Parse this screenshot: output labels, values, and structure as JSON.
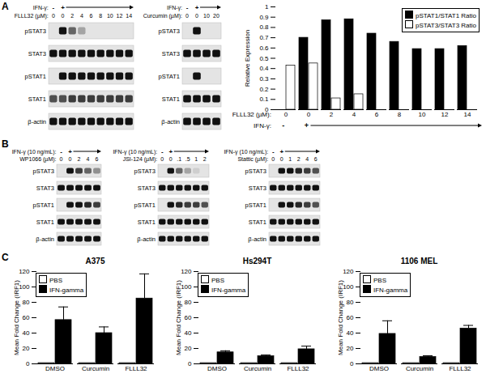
{
  "panel_labels": [
    "A",
    "B",
    "C"
  ],
  "blots": [
    {
      "ifn_label": "IFN-γ:",
      "ifn_marks": [
        "-",
        "+"
      ],
      "dose_label": "FLLL32 (µM):",
      "doses": [
        "0",
        "0",
        "2",
        "4",
        "6",
        "8",
        "10",
        "12",
        "14"
      ],
      "rows": [
        {
          "name": "pSTAT3",
          "bands": [
            0,
            1,
            0.6,
            0.3,
            0,
            0,
            0,
            0,
            0
          ]
        },
        {
          "name": "STAT3",
          "bands": [
            1,
            1,
            1,
            1,
            1,
            1,
            1,
            1,
            1
          ]
        },
        {
          "name": "pSTAT1",
          "bands": [
            0,
            1,
            1,
            1,
            1,
            1,
            1,
            1,
            1
          ]
        },
        {
          "name": "STAT1",
          "bands": [
            0.7,
            0.7,
            0.8,
            0.8,
            0.8,
            0.8,
            0.8,
            0.8,
            0.8
          ]
        },
        {
          "name": "β-actin",
          "bands": [
            1,
            1,
            1,
            1,
            1,
            1,
            1,
            1,
            1
          ]
        }
      ]
    },
    {
      "ifn_label": "IFN-γ:",
      "ifn_marks": [
        "-",
        "+"
      ],
      "dose_label": "Curcumin (µM):",
      "doses": [
        "0",
        "0",
        "10",
        "20"
      ],
      "rows": [
        {
          "name": "pSTAT3",
          "bands": [
            0,
            1,
            0,
            0
          ]
        },
        {
          "name": "STAT3",
          "bands": [
            1,
            1,
            1,
            1
          ]
        },
        {
          "name": "pSTAT1",
          "bands": [
            0,
            1,
            0,
            0
          ]
        },
        {
          "name": "STAT1",
          "bands": [
            1,
            1,
            1,
            1
          ]
        },
        {
          "name": "β-actin",
          "bands": [
            1,
            1,
            1,
            1
          ]
        }
      ]
    },
    {
      "ifn_label": "IFN-γ (10 ng/mL):",
      "ifn_marks": [
        "-",
        "+"
      ],
      "dose_label": "WP1066 (µM):",
      "doses": [
        "0",
        "0",
        "2",
        "4",
        "6"
      ],
      "rows": [
        {
          "name": "pSTAT3",
          "bands": [
            0,
            1,
            0.8,
            0.6,
            0.4
          ]
        },
        {
          "name": "STAT3",
          "bands": [
            1,
            1,
            1,
            1,
            1
          ]
        },
        {
          "name": "pSTAT1",
          "bands": [
            0,
            1,
            1,
            0.9,
            0.8
          ]
        },
        {
          "name": "STAT1",
          "bands": [
            1,
            1,
            1,
            1,
            1
          ]
        },
        {
          "name": "β-actin",
          "bands": [
            1,
            1,
            1,
            1,
            1
          ]
        }
      ]
    },
    {
      "ifn_label": "IFN-γ (10 ng/mL):",
      "ifn_marks": [
        "-",
        "+"
      ],
      "dose_label": "JSI-124 (µM):",
      "doses": [
        "0",
        "0",
        ".1",
        ".5",
        "1",
        "2"
      ],
      "rows": [
        {
          "name": "pSTAT3",
          "bands": [
            0,
            1,
            0.6,
            0.3,
            0.1,
            0
          ]
        },
        {
          "name": "STAT3",
          "bands": [
            1,
            1,
            1,
            1,
            1,
            1
          ]
        },
        {
          "name": "pSTAT1",
          "bands": [
            0,
            1,
            0.9,
            0.8,
            0.8,
            0.7
          ]
        },
        {
          "name": "STAT1",
          "bands": [
            1,
            1,
            1,
            1,
            1,
            1
          ]
        },
        {
          "name": "β-actin",
          "bands": [
            1,
            1,
            1,
            1,
            1,
            1
          ]
        }
      ]
    },
    {
      "ifn_label": "IFN-γ (10 ng/mL):",
      "ifn_marks": [
        "-",
        "+"
      ],
      "dose_label": "Stattic (µM):",
      "doses": [
        "0",
        "0",
        "1",
        "2",
        "4",
        "6"
      ],
      "rows": [
        {
          "name": "pSTAT3",
          "bands": [
            0,
            1,
            1,
            0.9,
            0.8,
            0.7
          ]
        },
        {
          "name": "STAT3",
          "bands": [
            1,
            1,
            1,
            1,
            1,
            1
          ]
        },
        {
          "name": "pSTAT1",
          "bands": [
            0,
            1,
            1,
            0.9,
            0.8,
            0.7
          ]
        },
        {
          "name": "STAT1",
          "bands": [
            1,
            1,
            1,
            1,
            1,
            1
          ]
        },
        {
          "name": "β-actin",
          "bands": [
            1,
            1,
            1,
            1,
            1,
            1
          ]
        }
      ]
    }
  ],
  "chart_data": [
    {
      "type": "bar",
      "categories": [
        "0",
        "0",
        "2",
        "4",
        "6",
        "8",
        "10",
        "12",
        "14"
      ],
      "xlabel": "FLLL32 (µM):",
      "ifn_label": "IFN-γ:",
      "ifn_marks": [
        "-",
        "+"
      ],
      "ylabel": "Relative Expression",
      "ylim": [
        0,
        1
      ],
      "yticks": [
        0,
        0.1,
        0.2,
        0.3,
        0.4,
        0.5,
        0.6,
        0.7,
        0.8,
        0.9,
        1
      ],
      "legend": "top-right",
      "series": [
        {
          "name": "pSTAT1/STAT1 Ratio",
          "color": "#000000",
          "values": [
            0,
            0.7,
            0.87,
            0.88,
            0.74,
            0.66,
            0.59,
            0.59,
            0.62
          ]
        },
        {
          "name": "pSTAT3/STAT3 Ratio",
          "color": "#ffffff",
          "values": [
            0.43,
            0.45,
            0.11,
            0.15,
            0,
            0,
            0,
            0,
            0
          ]
        }
      ]
    },
    {
      "type": "bar",
      "title": "A375",
      "categories": [
        "DMSO",
        "Curcumin",
        "FLLL32"
      ],
      "ylabel": "Mean Fold Change (IRF1)",
      "ylim": [
        0,
        120
      ],
      "yticks": [
        0,
        20,
        40,
        60,
        80,
        100,
        120
      ],
      "legend": "top-left",
      "series": [
        {
          "name": "PBS",
          "color": "#ffffff",
          "values": [
            1,
            1,
            1
          ]
        },
        {
          "name": "IFN-gamma",
          "color": "#000000",
          "values": [
            57,
            40,
            85
          ],
          "errors": [
            17,
            8,
            32
          ]
        }
      ]
    },
    {
      "type": "bar",
      "title": "Hs294T",
      "categories": [
        "DMSO",
        "Curcumin",
        "FLLL32"
      ],
      "ylabel": "Mean Fold Change (IRF1)",
      "ylim": [
        0,
        120
      ],
      "yticks": [
        0,
        20,
        40,
        60,
        80,
        100,
        120
      ],
      "legend": "top-left",
      "series": [
        {
          "name": "PBS",
          "color": "#ffffff",
          "values": [
            1,
            1,
            1
          ]
        },
        {
          "name": "IFN-gamma",
          "color": "#000000",
          "values": [
            15,
            10,
            19
          ],
          "errors": [
            2,
            1.5,
            4
          ]
        }
      ]
    },
    {
      "type": "bar",
      "title": "1106 MEL",
      "categories": [
        "DMSO",
        "Curcumin",
        "FLLL32"
      ],
      "ylabel": "Mean Fold Change (IRF1)",
      "ylim": [
        0,
        120
      ],
      "yticks": [
        0,
        20,
        40,
        60,
        80,
        100,
        120
      ],
      "legend": "top-left",
      "series": [
        {
          "name": "PBS",
          "color": "#ffffff",
          "values": [
            1,
            1,
            1
          ]
        },
        {
          "name": "IFN-gamma",
          "color": "#000000",
          "values": [
            39,
            9,
            46
          ],
          "errors": [
            17,
            1.5,
            4
          ]
        }
      ]
    }
  ]
}
